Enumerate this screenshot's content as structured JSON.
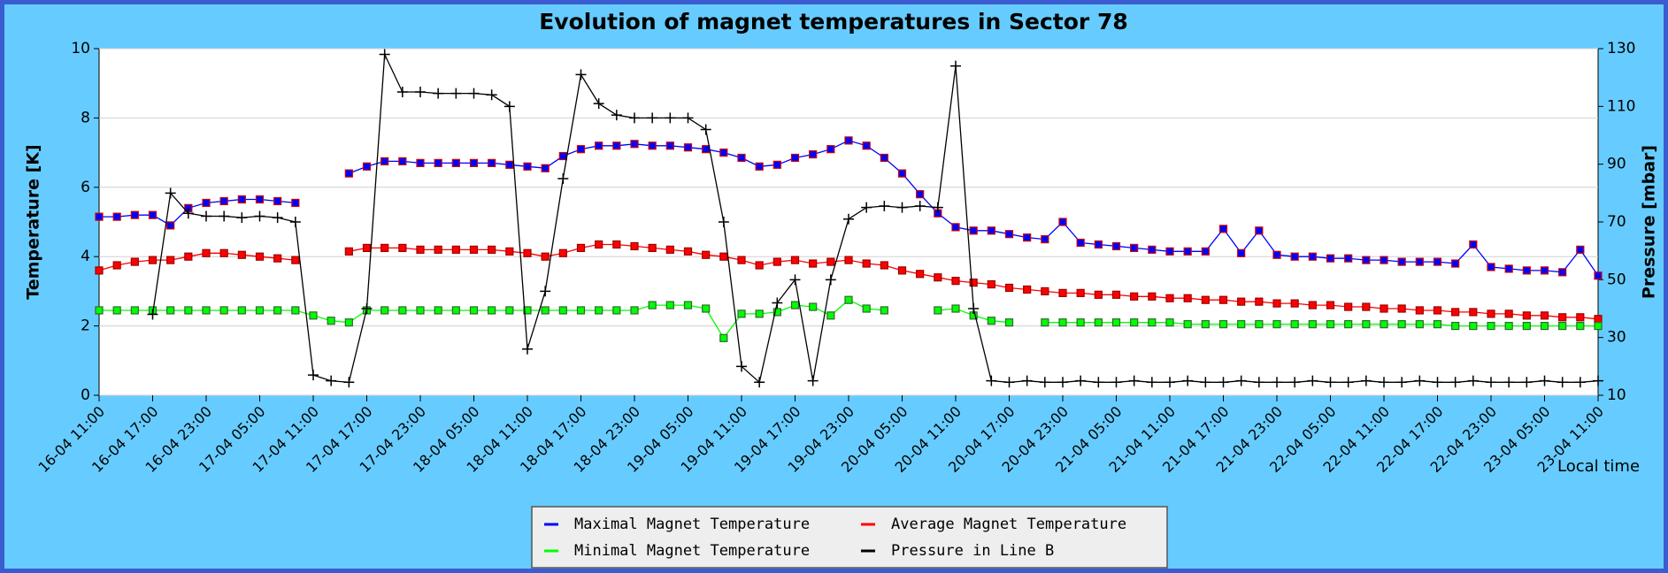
{
  "chart_data": {
    "type": "line",
    "title": "Evolution of magnet temperatures in Sector 78",
    "ylabel": "Temperature [K]",
    "y2label": "Pressure [mbar]",
    "xlabel": "Local time",
    "x": [
      "16-04 11:00",
      "16-04 13:00",
      "16-04 15:00",
      "16-04 17:00",
      "16-04 19:00",
      "16-04 21:00",
      "16-04 23:00",
      "17-04 01:00",
      "17-04 03:00",
      "17-04 05:00",
      "17-04 07:00",
      "17-04 09:00",
      "17-04 11:00",
      "17-04 13:00",
      "17-04 15:00",
      "17-04 17:00",
      "17-04 19:00",
      "17-04 21:00",
      "17-04 23:00",
      "18-04 01:00",
      "18-04 03:00",
      "18-04 05:00",
      "18-04 07:00",
      "18-04 09:00",
      "18-04 11:00",
      "18-04 13:00",
      "18-04 15:00",
      "18-04 17:00",
      "18-04 19:00",
      "18-04 21:00",
      "18-04 23:00",
      "19-04 01:00",
      "19-04 03:00",
      "19-04 05:00",
      "19-04 07:00",
      "19-04 09:00",
      "19-04 11:00",
      "19-04 13:00",
      "19-04 15:00",
      "19-04 17:00",
      "19-04 19:00",
      "19-04 21:00",
      "19-04 23:00",
      "20-04 01:00",
      "20-04 03:00",
      "20-04 05:00",
      "20-04 07:00",
      "20-04 09:00",
      "20-04 11:00",
      "20-04 13:00",
      "20-04 15:00",
      "20-04 17:00",
      "20-04 19:00",
      "20-04 21:00",
      "20-04 23:00",
      "21-04 01:00",
      "21-04 03:00",
      "21-04 05:00",
      "21-04 07:00",
      "21-04 09:00",
      "21-04 11:00",
      "21-04 13:00",
      "21-04 15:00",
      "21-04 17:00",
      "21-04 19:00",
      "21-04 21:00",
      "21-04 23:00",
      "22-04 01:00",
      "22-04 03:00",
      "22-04 05:00",
      "22-04 07:00",
      "22-04 09:00",
      "22-04 11:00",
      "22-04 13:00",
      "22-04 15:00",
      "22-04 17:00",
      "22-04 19:00",
      "22-04 21:00",
      "22-04 23:00",
      "23-04 01:00",
      "23-04 03:00",
      "23-04 05:00",
      "23-04 07:00",
      "23-04 09:00",
      "23-04 11:00"
    ],
    "series": [
      {
        "name": "Maximal Magnet Temperature",
        "color": "#0000ff",
        "values": [
          5.15,
          5.15,
          5.2,
          5.2,
          4.9,
          5.4,
          5.55,
          5.6,
          5.65,
          5.65,
          5.6,
          5.55,
          null,
          null,
          6.4,
          6.6,
          6.75,
          6.75,
          6.7,
          6.7,
          6.7,
          6.7,
          6.7,
          6.65,
          6.6,
          6.55,
          6.9,
          7.1,
          7.2,
          7.2,
          7.25,
          7.2,
          7.2,
          7.15,
          7.1,
          7.0,
          6.85,
          6.6,
          6.65,
          6.85,
          6.95,
          7.1,
          7.35,
          7.2,
          6.85,
          6.4,
          5.8,
          5.25,
          4.85,
          4.75,
          4.75,
          4.65,
          4.55,
          4.5,
          5.0,
          4.4,
          4.35,
          4.3,
          4.25,
          4.2,
          4.15,
          4.15,
          4.15,
          4.8,
          4.1,
          4.75,
          4.05,
          4.0,
          4.0,
          3.95,
          3.95,
          3.9,
          3.9,
          3.85,
          3.85,
          3.85,
          3.8,
          4.35,
          3.7,
          3.65,
          3.6,
          3.6,
          3.55,
          4.2,
          3.45
        ]
      },
      {
        "name": "Average Magnet Temperature",
        "color": "#ff0000",
        "values": [
          3.6,
          3.75,
          3.85,
          3.9,
          3.9,
          4.0,
          4.1,
          4.1,
          4.05,
          4.0,
          3.95,
          3.9,
          null,
          null,
          4.15,
          4.25,
          4.25,
          4.25,
          4.2,
          4.2,
          4.2,
          4.2,
          4.2,
          4.15,
          4.1,
          4.0,
          4.1,
          4.25,
          4.35,
          4.35,
          4.3,
          4.25,
          4.2,
          4.15,
          4.05,
          4.0,
          3.9,
          3.75,
          3.85,
          3.9,
          3.8,
          3.85,
          3.9,
          3.8,
          3.75,
          3.6,
          3.5,
          3.4,
          3.3,
          3.25,
          3.2,
          3.1,
          3.05,
          3.0,
          2.95,
          2.95,
          2.9,
          2.9,
          2.85,
          2.85,
          2.8,
          2.8,
          2.75,
          2.75,
          2.7,
          2.7,
          2.65,
          2.65,
          2.6,
          2.6,
          2.55,
          2.55,
          2.5,
          2.5,
          2.45,
          2.45,
          2.4,
          2.4,
          2.35,
          2.35,
          2.3,
          2.3,
          2.25,
          2.25,
          2.2
        ]
      },
      {
        "name": "Minimal Magnet Temperature",
        "color": "#00ff00",
        "values": [
          2.45,
          2.45,
          2.45,
          2.45,
          2.45,
          2.45,
          2.45,
          2.45,
          2.45,
          2.45,
          2.45,
          2.45,
          2.3,
          2.15,
          2.1,
          2.45,
          2.45,
          2.45,
          2.45,
          2.45,
          2.45,
          2.45,
          2.45,
          2.45,
          2.45,
          2.45,
          2.45,
          2.45,
          2.45,
          2.45,
          2.45,
          2.6,
          2.6,
          2.6,
          2.5,
          1.65,
          2.35,
          2.35,
          2.4,
          2.6,
          2.55,
          2.3,
          2.75,
          2.5,
          2.45,
          null,
          null,
          2.45,
          2.5,
          2.3,
          2.15,
          2.1,
          null,
          2.1,
          2.1,
          2.1,
          2.1,
          2.1,
          2.1,
          2.1,
          2.1,
          2.05,
          2.05,
          2.05,
          2.05,
          2.05,
          2.05,
          2.05,
          2.05,
          2.05,
          2.05,
          2.05,
          2.05,
          2.05,
          2.05,
          2.05,
          2.0,
          2.0,
          2.0,
          2.0,
          2.0,
          2.0,
          2.0,
          2.0,
          2.0
        ]
      },
      {
        "name": "Pressure in Line B",
        "color": "#000000",
        "axis": "y2",
        "values": [
          null,
          null,
          null,
          38,
          80,
          73,
          72,
          72,
          71.5,
          72,
          71.5,
          70,
          17,
          15,
          14.5,
          40,
          128,
          115,
          115,
          114.5,
          114.5,
          114.5,
          114,
          110,
          26,
          46,
          85,
          121,
          111,
          107,
          106,
          106,
          106,
          106,
          102,
          70,
          20,
          14.5,
          42,
          50,
          15,
          50,
          71,
          75,
          75.5,
          75,
          75.5,
          75,
          124,
          40,
          15,
          14.5,
          15,
          14.5,
          14.5,
          15,
          14.5,
          14.5,
          15,
          14.5,
          14.5,
          15,
          14.5,
          14.5,
          15,
          14.5,
          14.5,
          14.5,
          15,
          14.5,
          14.5,
          15,
          14.5,
          14.5,
          15,
          14.5,
          14.5,
          15,
          14.5,
          14.5,
          14.5,
          15,
          14.5,
          14.5,
          15
        ]
      }
    ],
    "xlim": [
      "16-04 11:00",
      "23-04 11:00"
    ],
    "xticks": [
      "16-04 11:00",
      "16-04 17:00",
      "16-04 23:00",
      "17-04 05:00",
      "17-04 11:00",
      "17-04 17:00",
      "17-04 23:00",
      "18-04 05:00",
      "18-04 11:00",
      "18-04 17:00",
      "18-04 23:00",
      "19-04 05:00",
      "19-04 11:00",
      "19-04 17:00",
      "19-04 23:00",
      "20-04 05:00",
      "20-04 11:00",
      "20-04 17:00",
      "20-04 23:00",
      "21-04 05:00",
      "21-04 11:00",
      "21-04 17:00",
      "21-04 23:00",
      "22-04 05:00",
      "22-04 11:00",
      "22-04 17:00",
      "22-04 23:00",
      "23-04 05:00",
      "23-04 11:00"
    ],
    "ylim": [
      0,
      10
    ],
    "yticks": [
      0,
      2,
      4,
      6,
      8,
      10
    ],
    "y2lim": [
      10,
      130
    ],
    "y2ticks": [
      10,
      30,
      50,
      70,
      90,
      110,
      130
    ],
    "grid": true,
    "legend": "bottom"
  }
}
